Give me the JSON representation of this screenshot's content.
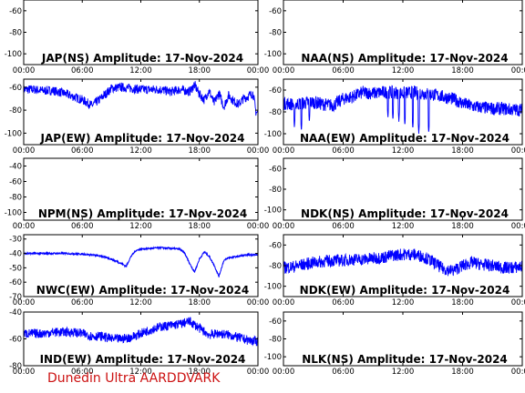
{
  "footer_text": "Dunedin Ultra AARDDVARK",
  "series_color": "#0000ff",
  "chart_data": [
    {
      "type": "line",
      "title": "JAP(NS) Amplitude: 17-Nov-2024",
      "xticks": [
        "00:00",
        "06:00",
        "12:00",
        "18:00",
        "00:00"
      ],
      "ylim": [
        -110,
        -50
      ],
      "yticks": [
        -60,
        -80,
        -100
      ],
      "x_hours": [],
      "y": []
    },
    {
      "type": "line",
      "title": "NAA(NS) Amplitude: 17-Nov-2024",
      "xticks": [
        "00:00",
        "06:00",
        "12:00",
        "18:00",
        "00:00"
      ],
      "ylim": [
        -110,
        -50
      ],
      "yticks": [
        -60,
        -80,
        -100
      ],
      "x_hours": [],
      "y": []
    },
    {
      "type": "line",
      "title": "JAP(EW) Amplitude: 17-Nov-2024",
      "xticks": [
        "00:00",
        "06:00",
        "12:00",
        "18:00",
        "00:00"
      ],
      "ylim": [
        -110,
        -53
      ],
      "yticks": [
        -60,
        -80,
        -100
      ],
      "noise": 4,
      "x_hours": [
        0,
        1,
        2,
        3,
        4,
        5,
        6,
        7,
        8,
        9,
        10,
        11,
        12,
        13,
        14,
        15,
        16,
        17,
        17.5,
        18,
        18.5,
        19,
        19.5,
        20,
        20.5,
        21,
        21.5,
        22,
        22.5,
        23,
        23.5,
        23.8,
        24
      ],
      "y": [
        -62,
        -62,
        -63,
        -63,
        -65,
        -68,
        -71,
        -76,
        -69,
        -61,
        -60,
        -61,
        -62,
        -62,
        -62,
        -64,
        -62,
        -64,
        -58,
        -66,
        -71,
        -63,
        -74,
        -65,
        -77,
        -67,
        -72,
        -75,
        -70,
        -68,
        -65,
        -82,
        -82
      ]
    },
    {
      "type": "line",
      "title": "NAA(EW) Amplitude: 17-Nov-2024",
      "xticks": [
        "00:00",
        "06:00",
        "12:00",
        "18:00",
        "00:00"
      ],
      "ylim": [
        -110,
        -50
      ],
      "yticks": [
        -60,
        -80,
        -100
      ],
      "noise": 6,
      "x_hours": [
        0,
        1,
        2,
        3,
        4,
        5,
        6,
        7,
        8,
        9,
        10,
        11,
        12,
        13,
        14,
        15,
        16,
        17,
        18,
        19,
        20,
        21,
        22,
        23,
        24
      ],
      "y": [
        -72,
        -73,
        -72,
        -71,
        -73,
        -74,
        -68,
        -66,
        -62,
        -63,
        -62,
        -62,
        -63,
        -62,
        -63,
        -64,
        -66,
        -68,
        -72,
        -75,
        -76,
        -77,
        -77,
        -78,
        -78
      ],
      "dips": [
        [
          1.1,
          -95
        ],
        [
          1.8,
          -98
        ],
        [
          2.6,
          -90
        ],
        [
          10.5,
          -86
        ],
        [
          11.0,
          -88
        ],
        [
          11.6,
          -89
        ],
        [
          12.2,
          -93
        ],
        [
          13.0,
          -96
        ],
        [
          13.6,
          -100
        ],
        [
          14.6,
          -100
        ]
      ]
    },
    {
      "type": "line",
      "title": "NPM(NS) Amplitude: 17-Nov-2024",
      "xticks": [
        "00:00",
        "06:00",
        "12:00",
        "18:00",
        "00:00"
      ],
      "ylim": [
        -110,
        -30
      ],
      "yticks": [
        -40,
        -60,
        -80,
        -100
      ],
      "x_hours": [],
      "y": []
    },
    {
      "type": "line",
      "title": "NDK(NS) Amplitude: 17-Nov-2024",
      "xticks": [
        "00:00",
        "06:00",
        "12:00",
        "18:00",
        "00:00"
      ],
      "ylim": [
        -110,
        -50
      ],
      "yticks": [
        -60,
        -80,
        -100
      ],
      "x_hours": [],
      "y": []
    },
    {
      "type": "line",
      "title": "NWC(EW) Amplitude: 17-Nov-2024",
      "xticks": [
        "00:00",
        "06:00",
        "12:00",
        "18:00",
        "00:00"
      ],
      "ylim": [
        -70,
        -27
      ],
      "yticks": [
        -30,
        -40,
        -50,
        -60,
        -70
      ],
      "noise": 0.6,
      "x_hours": [
        0,
        2,
        4,
        6,
        7,
        8,
        9,
        10,
        10.5,
        11,
        11.5,
        12,
        13,
        14,
        15,
        16,
        16.5,
        17,
        17.5,
        18,
        18.5,
        19,
        19.5,
        20,
        20.5,
        21,
        22,
        23,
        24
      ],
      "y": [
        -40,
        -40,
        -40,
        -40.5,
        -41,
        -42,
        -44,
        -47,
        -49,
        -42,
        -38,
        -37,
        -36.5,
        -36,
        -36.5,
        -37,
        -40,
        -47,
        -53,
        -44,
        -39,
        -42,
        -48,
        -56,
        -45,
        -43,
        -42,
        -41,
        -41
      ]
    },
    {
      "type": "line",
      "title": "NDK(EW) Amplitude: 17-Nov-2024",
      "xticks": [
        "00:00",
        "06:00",
        "12:00",
        "18:00",
        "00:00"
      ],
      "ylim": [
        -110,
        -50
      ],
      "yticks": [
        -60,
        -80,
        -100
      ],
      "noise": 6,
      "x_hours": [
        0,
        1,
        2,
        3,
        4,
        5,
        6,
        7,
        8,
        9,
        10,
        11,
        12,
        13,
        14,
        15,
        16,
        17,
        18,
        19,
        20,
        21,
        22,
        23,
        24
      ],
      "y": [
        -82,
        -81,
        -79,
        -77,
        -76,
        -75,
        -75,
        -74,
        -74,
        -73,
        -72,
        -70,
        -69,
        -69,
        -71,
        -76,
        -83,
        -85,
        -80,
        -77,
        -79,
        -80,
        -82,
        -82,
        -81
      ]
    },
    {
      "type": "line",
      "title": "IND(EW) Amplitude: 17-Nov-2024",
      "xticks": [
        "00:00",
        "06:00",
        "12:00",
        "18:00",
        "00:00"
      ],
      "ylim": [
        -80,
        -40
      ],
      "yticks": [
        -40,
        -60,
        -80
      ],
      "noise": 3.5,
      "x_hours": [
        0,
        1,
        2,
        3,
        4,
        5,
        6,
        7,
        8,
        9,
        10,
        11,
        12,
        13,
        14,
        15,
        16,
        17,
        18,
        19,
        20,
        21,
        22,
        23,
        24
      ],
      "y": [
        -56,
        -56,
        -56,
        -55,
        -55,
        -55,
        -56,
        -58,
        -58,
        -60,
        -60,
        -59,
        -56,
        -53,
        -51,
        -50,
        -49,
        -47,
        -52,
        -57,
        -56,
        -57,
        -59,
        -61,
        -62
      ]
    },
    {
      "type": "line",
      "title": "NLK(NS) Amplitude: 17-Nov-2024",
      "xticks": [
        "00:00",
        "06:00",
        "12:00",
        "18:00",
        "00:00"
      ],
      "ylim": [
        -110,
        -50
      ],
      "yticks": [
        -60,
        -80,
        -100
      ],
      "x_hours": [],
      "y": []
    }
  ]
}
